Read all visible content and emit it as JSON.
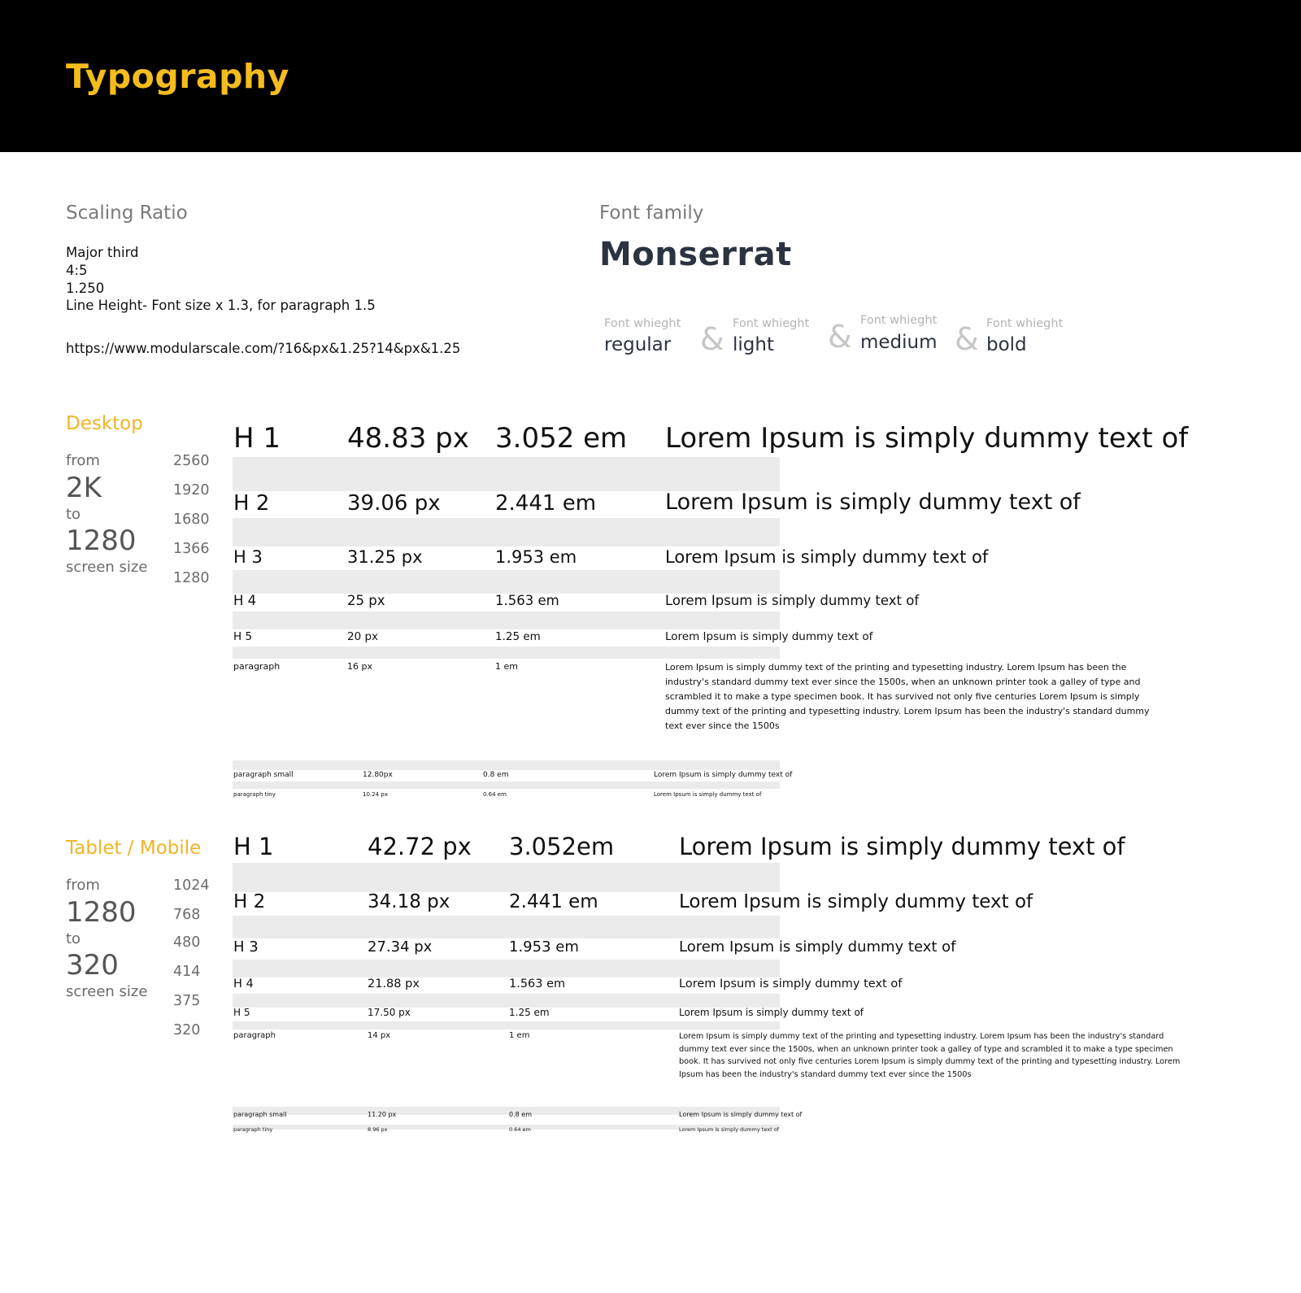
{
  "header": {
    "title": "Typography"
  },
  "scaling": {
    "label": "Scaling Ratio",
    "lines": [
      "Major third",
      "4:5",
      "1.250",
      "Line Height- Font size x 1.3, for paragraph 1.5"
    ],
    "url": "https://www.modularscale.com/?16&px&1.25?14&px&1.25"
  },
  "font_family": {
    "label": "Font family",
    "name": "Monserrat",
    "weights": [
      {
        "caption": "Font whieght",
        "value": "regular"
      },
      {
        "caption": "Font whieght",
        "value": "light"
      },
      {
        "caption": "Font whieght",
        "value": "medium"
      },
      {
        "caption": "Font whieght",
        "value": "bold"
      }
    ],
    "amp": "&"
  },
  "desktop": {
    "title": "Desktop",
    "from_label": "from",
    "from_value": "2K",
    "to_label": "to",
    "to_value": "1280",
    "screen_label": "screen size",
    "sizes": [
      "2560",
      "1920",
      "1680",
      "1366",
      "1280"
    ],
    "rows": [
      {
        "name": "H 1",
        "px": "48.83 px",
        "em": "3.052 em",
        "sample": "Lorem Ipsum is simply dummy text of"
      },
      {
        "name": "H 2",
        "px": "39.06 px",
        "em": "2.441 em",
        "sample": "Lorem Ipsum is simply dummy text of"
      },
      {
        "name": "H 3",
        "px": "31.25 px",
        "em": "1.953 em",
        "sample": "Lorem Ipsum is simply dummy text of"
      },
      {
        "name": "H 4",
        "px": "25 px",
        "em": "1.563 em",
        "sample": "Lorem Ipsum is simply dummy text of"
      },
      {
        "name": "H 5",
        "px": "20 px",
        "em": "1.25 em",
        "sample": "Lorem Ipsum is simply dummy text of"
      },
      {
        "name": "paragraph",
        "px": "16 px",
        "em": "1 em",
        "sample": "Lorem Ipsum is simply dummy text of the printing and typesetting industry. Lorem Ipsum has been the industry's standard dummy text ever since the 1500s, when an unknown printer took a galley of type and scrambled it to make a type specimen book. It has survived not only five centuries Lorem Ipsum is simply dummy text of the printing and typesetting industry. Lorem Ipsum has been the industry's standard dummy text ever since the 1500s"
      },
      {
        "name": "paragraph small",
        "px": "12.80px",
        "em": "0.8 em",
        "sample": "Lorem Ipsum is simply dummy text of"
      },
      {
        "name": "paragraph tiny",
        "px": "10.24 px",
        "em": "0.64 em",
        "sample": "Lorem Ipsum is simply dummy text of"
      }
    ]
  },
  "tablet": {
    "title": "Tablet / Mobile",
    "from_label": "from",
    "from_value": "1280",
    "to_label": "to",
    "to_value": "320",
    "screen_label": "screen size",
    "sizes": [
      "1024",
      "768",
      "480",
      "414",
      "375",
      "320"
    ],
    "rows": [
      {
        "name": "H 1",
        "px": "42.72 px",
        "em": "3.052em",
        "sample": "Lorem Ipsum is simply dummy text of"
      },
      {
        "name": "H 2",
        "px": "34.18 px",
        "em": "2.441 em",
        "sample": "Lorem Ipsum is simply dummy text of"
      },
      {
        "name": "H 3",
        "px": "27.34 px",
        "em": "1.953 em",
        "sample": "Lorem Ipsum is simply dummy text of"
      },
      {
        "name": "H 4",
        "px": "21.88 px",
        "em": "1.563 em",
        "sample": "Lorem Ipsum is simply dummy text of"
      },
      {
        "name": "H 5",
        "px": "17.50 px",
        "em": "1.25 em",
        "sample": "Lorem Ipsum is simply dummy text of"
      },
      {
        "name": "paragraph",
        "px": "14 px",
        "em": "1 em",
        "sample": "Lorem Ipsum is simply dummy text of the printing and typesetting industry. Lorem Ipsum has been the industry's standard dummy text ever since the 1500s, when an unknown printer took a galley of type and scrambled it to make a type specimen book. It has survived not only five centuries Lorem Ipsum is simply dummy text of the printing and typesetting industry. Lorem Ipsum has been the industry's standard dummy text ever since the 1500s"
      },
      {
        "name": "paragraph small",
        "px": "11.20 px",
        "em": "0.8 em",
        "sample": "Lorem Ipsum is simply dummy text of"
      },
      {
        "name": "paragraph tiny",
        "px": "8.96 px",
        "em": "0.64 em",
        "sample": "Lorem Ipsum is simply dummy text of"
      }
    ]
  }
}
